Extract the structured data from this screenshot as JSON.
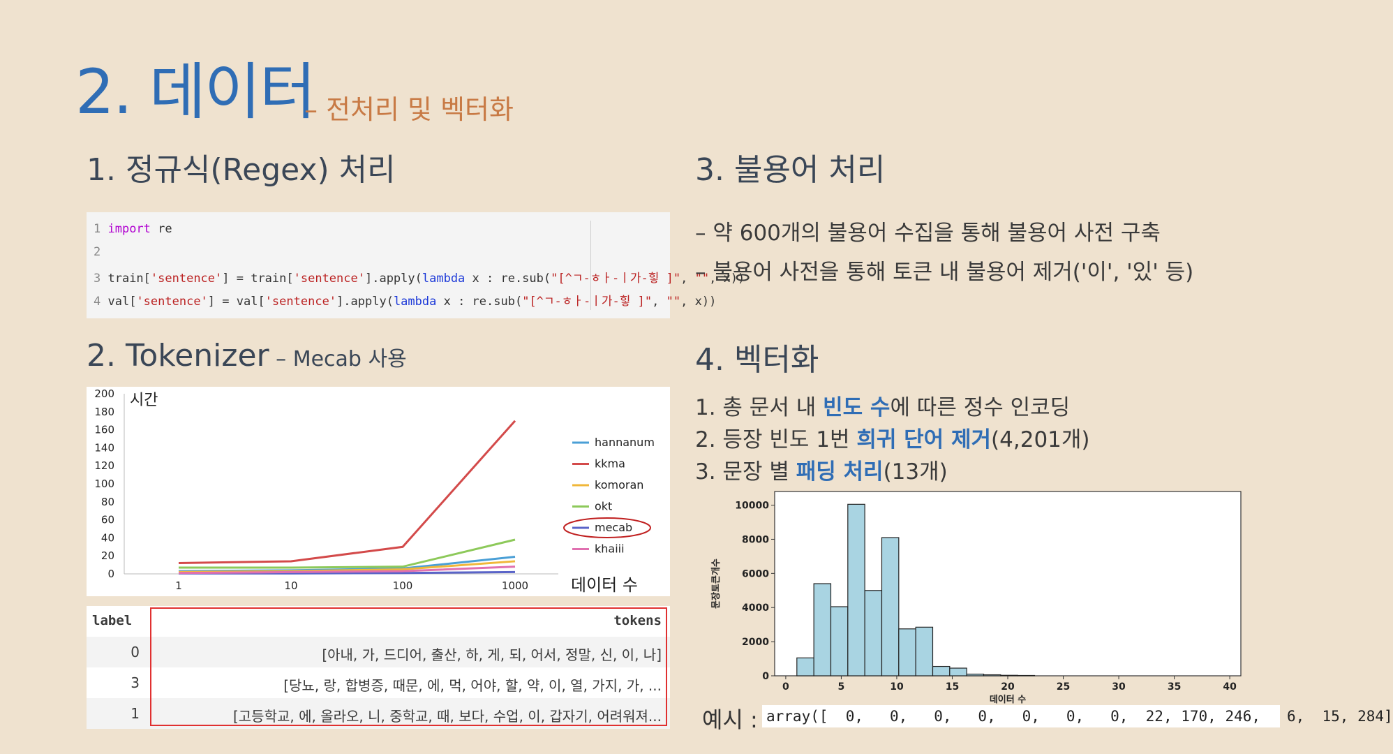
{
  "title": {
    "main": "2. 데이터",
    "sub": "– 전처리 및 벡터화"
  },
  "sec1": {
    "title": "1. 정규식(Regex) 처리"
  },
  "code": {
    "lines": [
      {
        "n": "1",
        "parts": [
          {
            "t": "import",
            "c": "kw"
          },
          {
            "t": " re",
            "c": ""
          }
        ]
      },
      {
        "n": "2",
        "parts": []
      },
      {
        "n": "3",
        "parts": [
          {
            "t": "train[",
            "c": ""
          },
          {
            "t": "'sentence'",
            "c": "str"
          },
          {
            "t": "] = train[",
            "c": ""
          },
          {
            "t": "'sentence'",
            "c": "str"
          },
          {
            "t": "].apply(",
            "c": ""
          },
          {
            "t": "lambda",
            "c": "kw2"
          },
          {
            "t": " x : re.sub(",
            "c": ""
          },
          {
            "t": "\"[^ㄱ-ㅎㅏ-ㅣ가-힣 ]\"",
            "c": "str"
          },
          {
            "t": ", ",
            "c": ""
          },
          {
            "t": "\"\"",
            "c": "str"
          },
          {
            "t": ", x))",
            "c": ""
          }
        ]
      },
      {
        "n": "4",
        "parts": [
          {
            "t": "val[",
            "c": ""
          },
          {
            "t": "'sentence'",
            "c": "str"
          },
          {
            "t": "] = val[",
            "c": ""
          },
          {
            "t": "'sentence'",
            "c": "str"
          },
          {
            "t": "].apply(",
            "c": ""
          },
          {
            "t": "lambda",
            "c": "kw2"
          },
          {
            "t": " x : re.sub(",
            "c": ""
          },
          {
            "t": "\"[^ㄱ-ㅎㅏ-ㅣ가-힣 ]\"",
            "c": "str"
          },
          {
            "t": ", ",
            "c": ""
          },
          {
            "t": "\"\"",
            "c": "str"
          },
          {
            "t": ", x))",
            "c": ""
          }
        ]
      }
    ]
  },
  "sec2": {
    "title": "2. Tokenizer",
    "sub": " – Mecab 사용"
  },
  "sec3": {
    "title": "3. 불용어 처리",
    "bullets": [
      "– 약 600개의 불용어 수집을 통해 불용어 사전 구축",
      "– 불용어 사전을 통해 토큰 내 불용어 제거('이', '있' 등)"
    ]
  },
  "sec4": {
    "title": "4. 벡터화",
    "items": [
      {
        "pre": "1. 총 문서 내 ",
        "hl": "빈도 수",
        "post": "에 따른 정수 인코딩"
      },
      {
        "pre": "2. 등장 빈도 1번 ",
        "hl": "희귀 단어 제거",
        "post": "(4,201개)"
      },
      {
        "pre": "3. 문장 별 ",
        "hl": "패딩 처리",
        "post": "(13개)"
      }
    ]
  },
  "table": {
    "headers": [
      "label",
      "tokens"
    ],
    "rows": [
      {
        "label": "0",
        "tokens": "[아내, 가, 드디어, 출산, 하, 게, 되, 어서, 정말, 신, 이, 나]"
      },
      {
        "label": "3",
        "tokens": "[당뇨, 랑, 합병증, 때문, 에, 먹, 어야, 할, 약, 이, 열, 가지, 가, ..."
      },
      {
        "label": "1",
        "tokens": "[고등학교, 에, 올라오, 니, 중학교, 때, 보다, 수업, 이, 갑자기, 어려워져..."
      }
    ]
  },
  "example": {
    "label": "예시 :",
    "value": "array([  0,   0,   0,   0,   0,   0,   0,  22, 170, 246,   6,  15, 284]"
  },
  "chart_data": [
    {
      "type": "line",
      "x": [
        1,
        10,
        100,
        1000
      ],
      "xlabel": "데이터 수",
      "ylabel": "시간",
      "ylim": [
        0,
        200
      ],
      "yticks": [
        0,
        20,
        40,
        60,
        80,
        100,
        120,
        140,
        160,
        180,
        200
      ],
      "xscale": "log",
      "legend_position": "right",
      "highlight_series": "mecab",
      "series": [
        {
          "name": "hannanum",
          "color": "#4a9fd6",
          "values": [
            3,
            4,
            6,
            19
          ]
        },
        {
          "name": "kkma",
          "color": "#d34a4a",
          "values": [
            12,
            14,
            30,
            170
          ]
        },
        {
          "name": "komoran",
          "color": "#f0b73a",
          "values": [
            2,
            3,
            5,
            14
          ]
        },
        {
          "name": "okt",
          "color": "#8dc95a",
          "values": [
            7,
            7,
            8,
            38
          ]
        },
        {
          "name": "mecab",
          "color": "#5a64c8",
          "values": [
            0.5,
            0.5,
            1,
            2
          ]
        },
        {
          "name": "khaiii",
          "color": "#e070b0",
          "values": [
            1,
            2,
            3,
            8
          ]
        }
      ]
    },
    {
      "type": "bar",
      "subtype": "histogram",
      "xlabel": "데이터 수",
      "ylabel": "문장토큰개수",
      "xlim": [
        -1,
        41
      ],
      "ylim": [
        0,
        10800
      ],
      "xticks": [
        0,
        5,
        10,
        15,
        20,
        25,
        30,
        35,
        40
      ],
      "yticks": [
        0,
        2000,
        4000,
        6000,
        8000,
        10000
      ],
      "bin_width": 1.53,
      "bin_start": 1,
      "values": [
        1050,
        5400,
        4050,
        10050,
        5000,
        8100,
        2750,
        2850,
        550,
        450,
        100,
        60,
        30,
        20
      ],
      "color": "#a9d4e2"
    }
  ]
}
